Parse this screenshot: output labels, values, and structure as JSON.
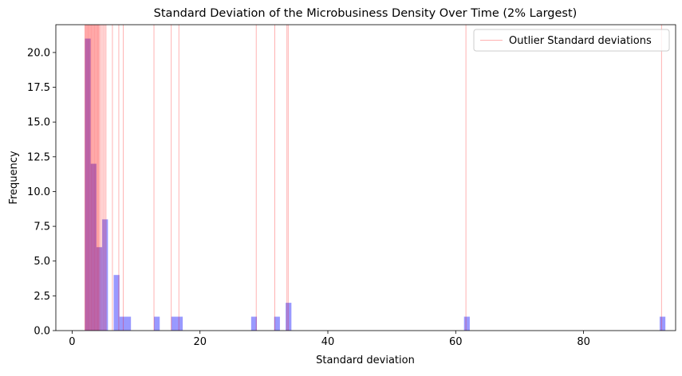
{
  "chart_data": {
    "type": "bar",
    "title": "Standard Deviation of the Microbusiness Density Over Time (2% Largest)",
    "xlabel": "Standard deviation",
    "ylabel": "Frequency",
    "xlim": [
      -2.55,
      94.4
    ],
    "ylim": [
      0,
      22
    ],
    "x_ticks": [
      0,
      20,
      40,
      60,
      80
    ],
    "x_tick_labels": [
      "0",
      "20",
      "40",
      "60",
      "80"
    ],
    "y_ticks": [
      0,
      2.5,
      5,
      7.5,
      10,
      12.5,
      15,
      17.5,
      20
    ],
    "y_tick_labels": [
      "0.0",
      "2.5",
      "5.0",
      "7.5",
      "10.0",
      "12.5",
      "15.0",
      "17.5",
      "20.0"
    ],
    "grid": false,
    "legend_position": "top-right",
    "histogram": {
      "bin_width": 0.9,
      "color": "#0000ff",
      "alpha": 0.4,
      "bins": [
        {
          "x": 2.0,
          "count": 21
        },
        {
          "x": 2.9,
          "count": 12
        },
        {
          "x": 3.8,
          "count": 6
        },
        {
          "x": 4.7,
          "count": 8
        },
        {
          "x": 6.5,
          "count": 4
        },
        {
          "x": 7.4,
          "count": 1
        },
        {
          "x": 8.3,
          "count": 1
        },
        {
          "x": 12.8,
          "count": 1
        },
        {
          "x": 15.5,
          "count": 1
        },
        {
          "x": 16.4,
          "count": 1
        },
        {
          "x": 28.0,
          "count": 1
        },
        {
          "x": 31.6,
          "count": 1
        },
        {
          "x": 33.4,
          "count": 2
        },
        {
          "x": 61.3,
          "count": 1
        },
        {
          "x": 91.9,
          "count": 1
        }
      ]
    },
    "outlier_series": {
      "name": "Outlier Standard deviations",
      "color": "#ff0000",
      "alpha": 0.3,
      "values": [
        2.0,
        2.1,
        2.2,
        2.3,
        2.4,
        2.5,
        2.6,
        2.7,
        2.8,
        2.9,
        3.0,
        3.1,
        3.2,
        3.3,
        3.4,
        3.5,
        3.6,
        3.7,
        3.8,
        3.9,
        4.0,
        4.1,
        4.2,
        4.3,
        4.5,
        4.7,
        4.9,
        5.1,
        5.3,
        6.3,
        7.3,
        8.0,
        12.8,
        15.5,
        16.7,
        28.8,
        31.7,
        33.6,
        33.8,
        61.6,
        92.2
      ]
    }
  }
}
